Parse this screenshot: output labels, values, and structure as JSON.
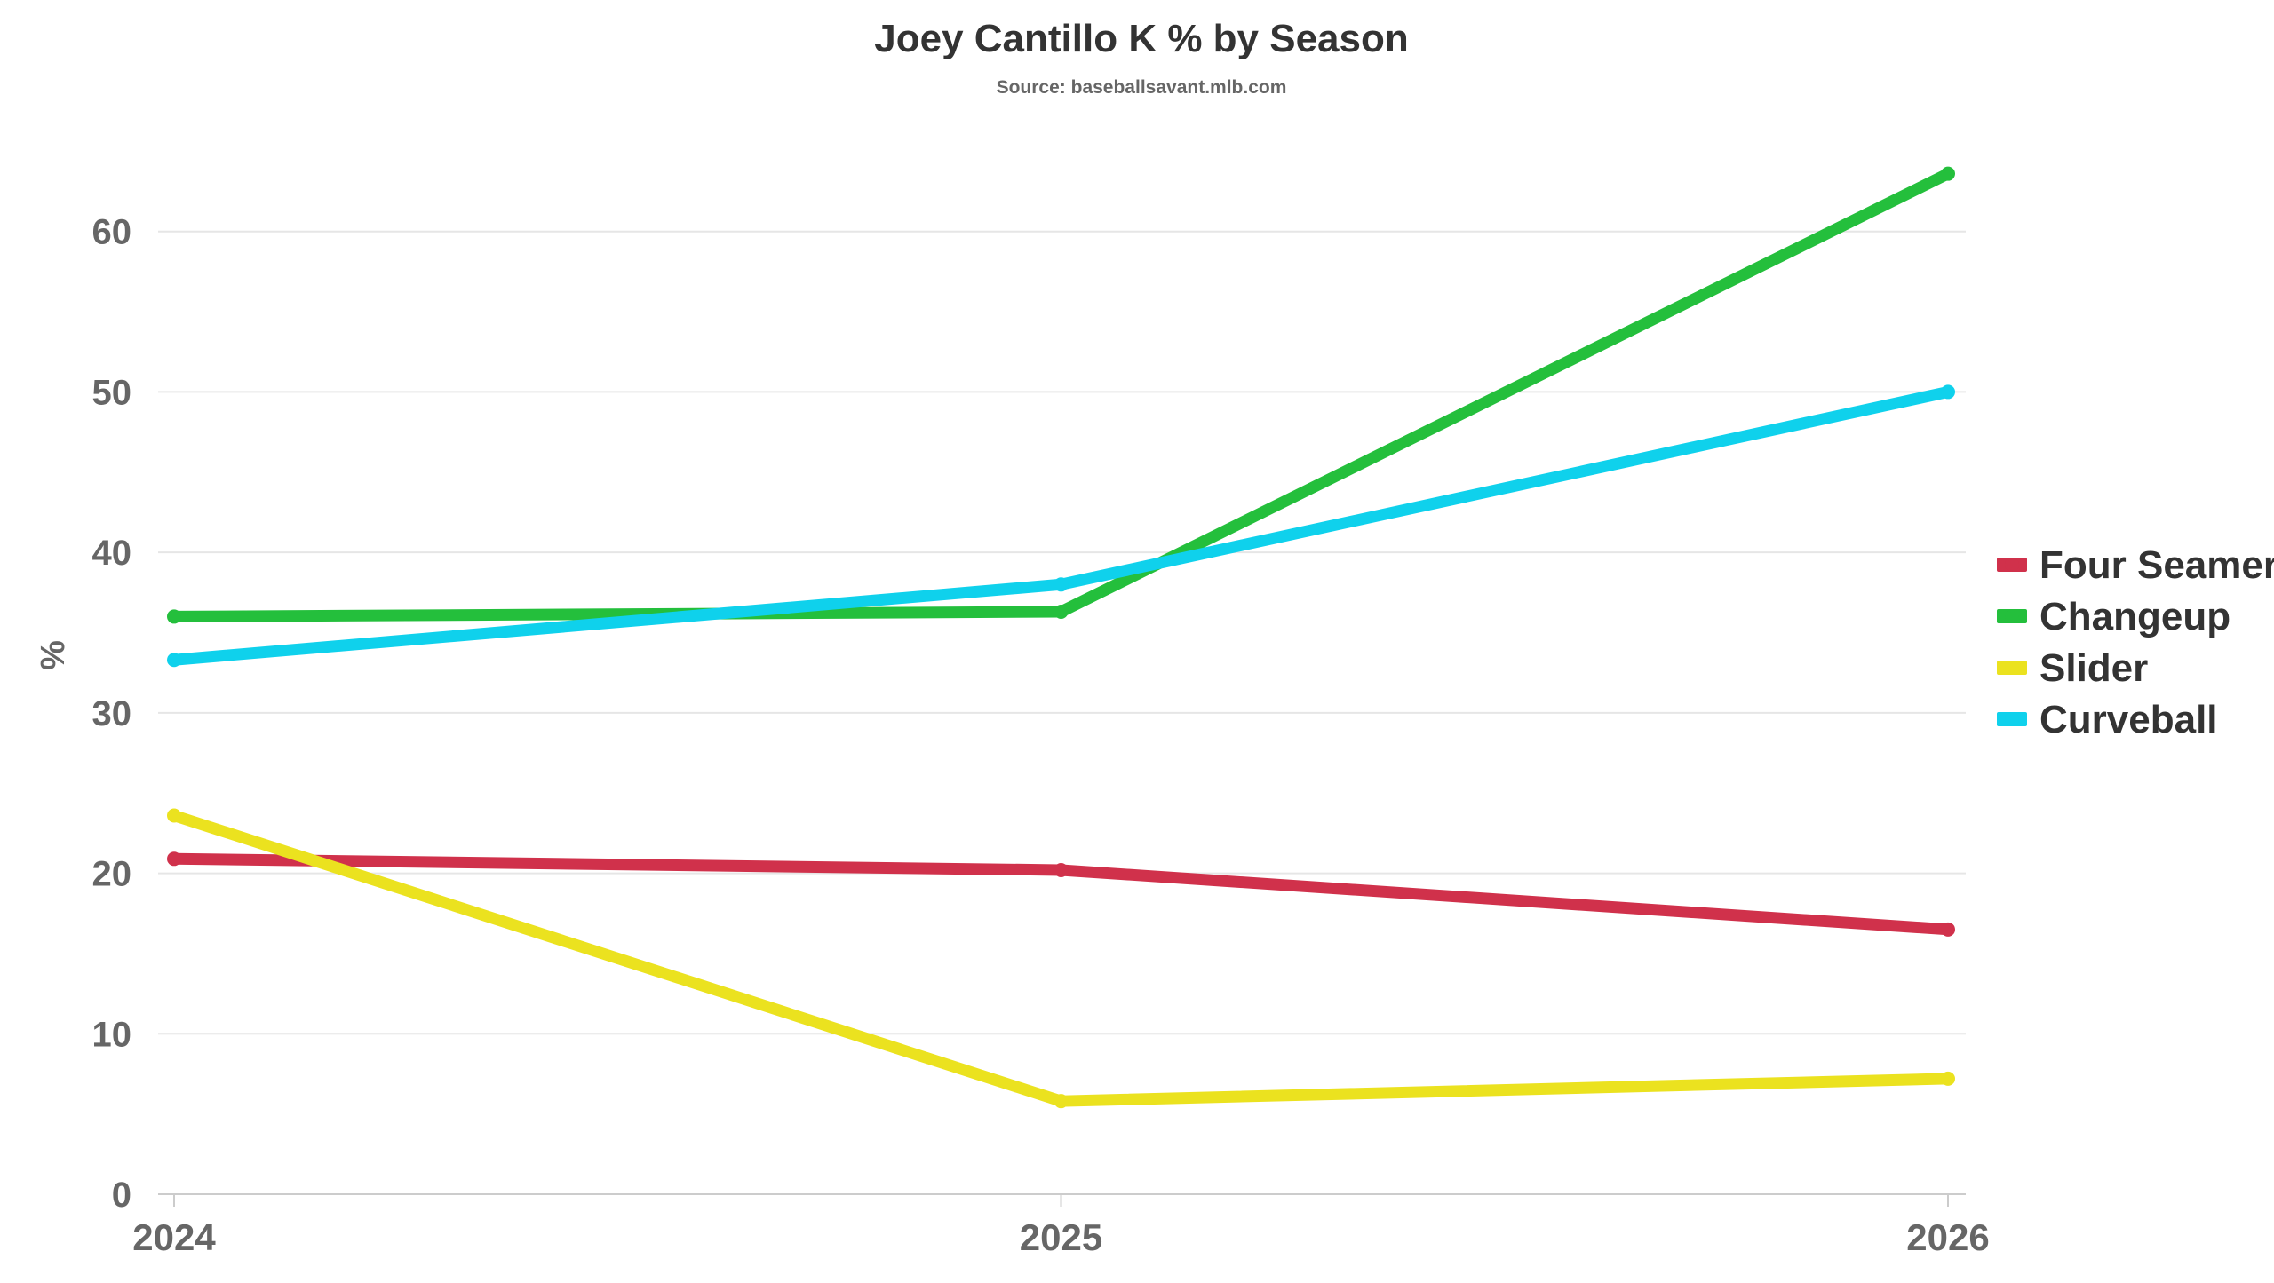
{
  "chart_data": {
    "type": "line",
    "title": "Joey Cantillo K % by Season",
    "subtitle": "Source: baseballsavant.mlb.com",
    "xlabel": "",
    "ylabel": "%",
    "x": [
      "2024",
      "2025",
      "2026"
    ],
    "ylim": [
      0,
      70
    ],
    "yticks": [
      0,
      10,
      20,
      30,
      40,
      50,
      60
    ],
    "grid": true,
    "legend_position": "right",
    "series": [
      {
        "name": "Four Seamer",
        "color": "#d0314b",
        "values": [
          20.9,
          20.2,
          16.5
        ]
      },
      {
        "name": "Changeup",
        "color": "#24bf3c",
        "values": [
          36.0,
          36.3,
          63.6
        ]
      },
      {
        "name": "Slider",
        "color": "#ebe21f",
        "values": [
          23.6,
          5.8,
          7.2
        ]
      },
      {
        "name": "Curveball",
        "color": "#0fd1ec",
        "values": [
          33.3,
          38.0,
          50.0
        ]
      }
    ]
  }
}
